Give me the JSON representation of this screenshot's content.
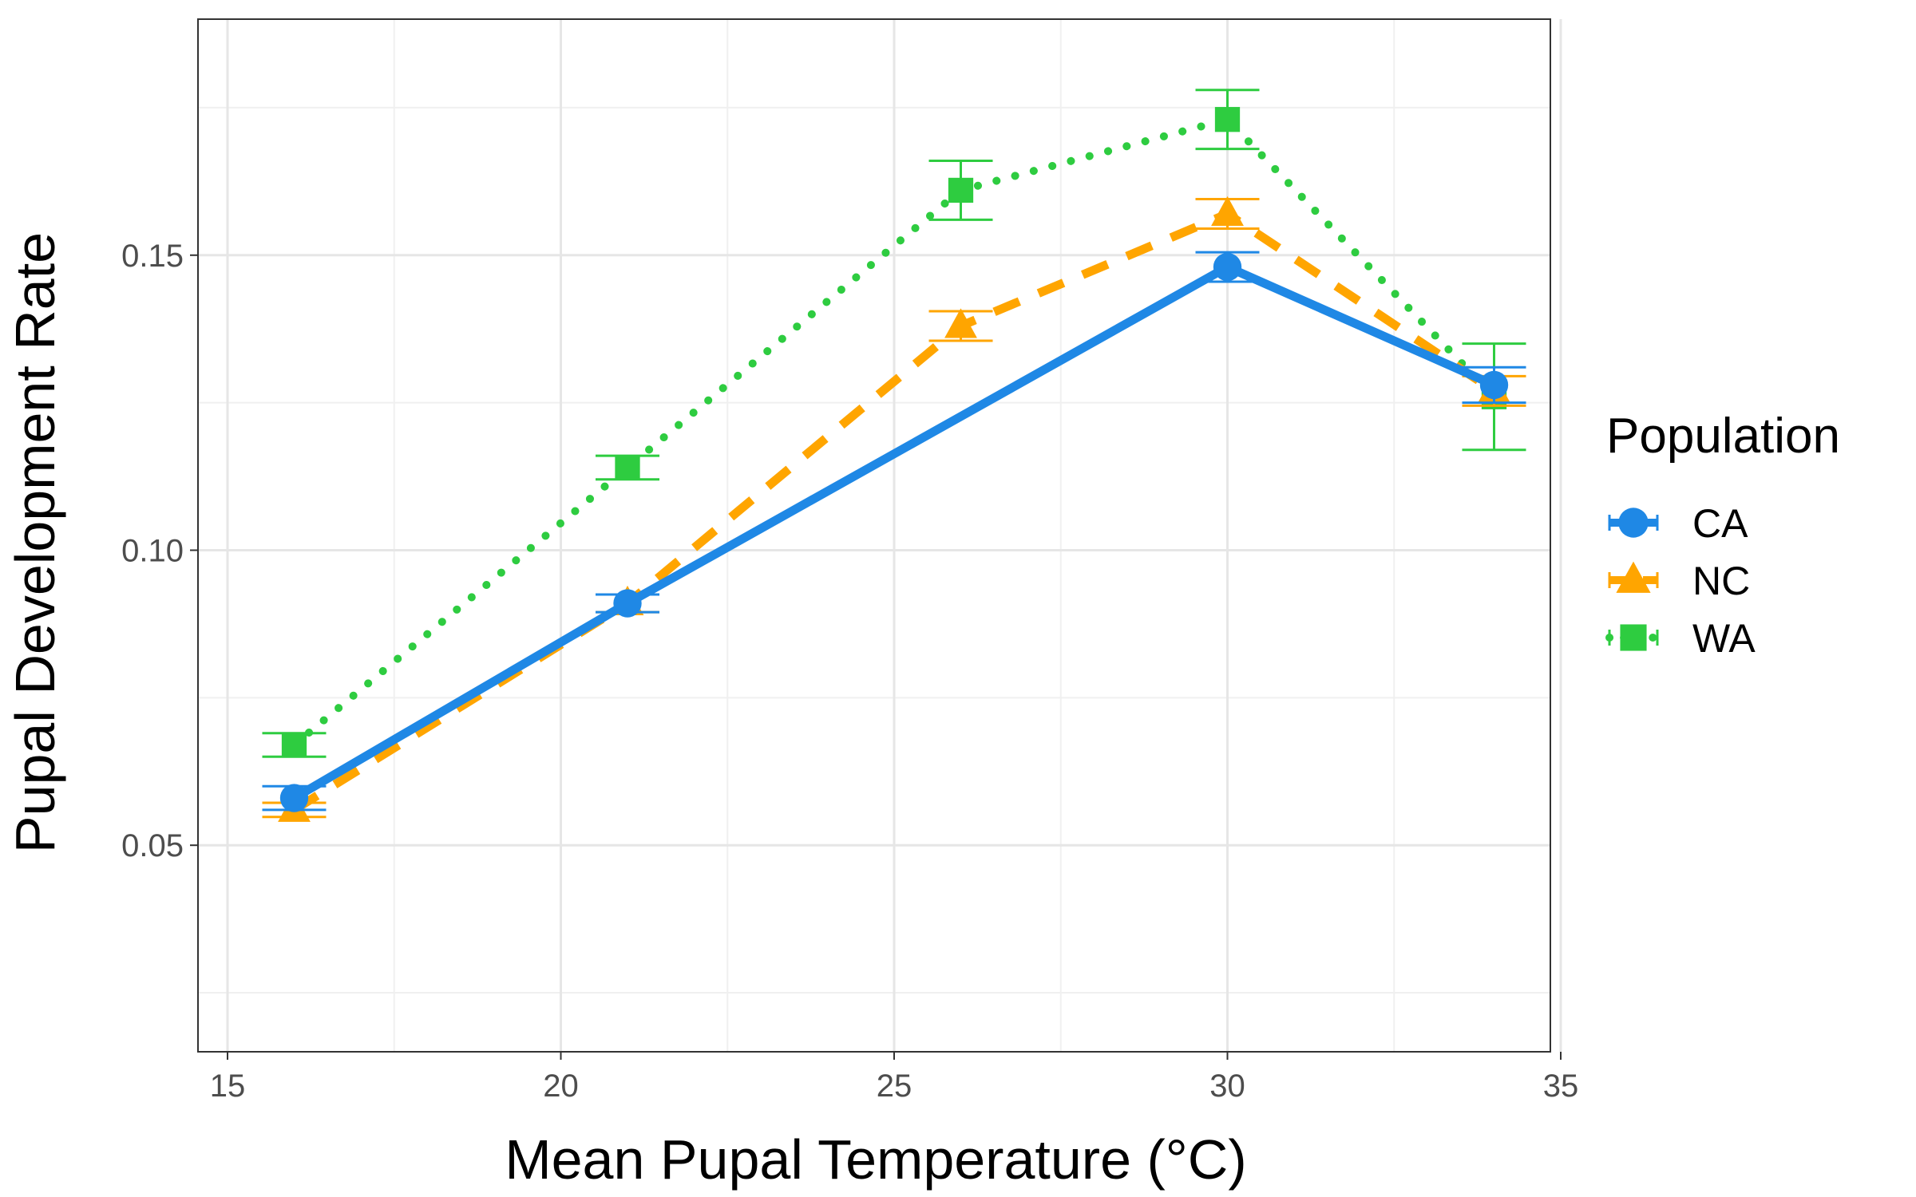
{
  "chart_data": {
    "type": "line",
    "xlabel": "Mean Pupal Temperature (°C)",
    "ylabel": "Pupal Development Rate",
    "xlim": [
      15,
      35
    ],
    "ylim": [
      0.015,
      0.19
    ],
    "x_ticks": [
      15,
      20,
      25,
      30,
      35
    ],
    "x_tick_labels": [
      "15",
      "20",
      "25",
      "30",
      "35"
    ],
    "y_ticks": [
      0.05,
      0.1,
      0.15
    ],
    "y_tick_labels": [
      "0.05",
      "0.10",
      "0.15"
    ],
    "grid": true,
    "legend": {
      "title": "Population",
      "placement": "right"
    },
    "series": [
      {
        "name": "CA",
        "color": "#1f88e5",
        "line": "solid",
        "marker": "circle",
        "x": [
          16,
          21,
          30,
          34
        ],
        "y": [
          0.058,
          0.091,
          0.148,
          0.128
        ],
        "err": [
          0.002,
          0.0015,
          0.0025,
          0.003
        ]
      },
      {
        "name": "NC",
        "color": "#ffa500",
        "line": "dashed",
        "marker": "triangle",
        "x": [
          16,
          21,
          26,
          30,
          34
        ],
        "y": [
          0.056,
          0.091,
          0.138,
          0.157,
          0.127
        ],
        "err": [
          0.0012,
          0.0015,
          0.0025,
          0.0025,
          0.0025
        ]
      },
      {
        "name": "WA",
        "color": "#2ecc40",
        "line": "dotted",
        "marker": "square",
        "x": [
          16,
          21,
          26,
          30,
          34
        ],
        "y": [
          0.067,
          0.114,
          0.161,
          0.173,
          0.126
        ],
        "err": [
          0.002,
          0.002,
          0.005,
          0.005,
          0.009
        ]
      }
    ]
  }
}
